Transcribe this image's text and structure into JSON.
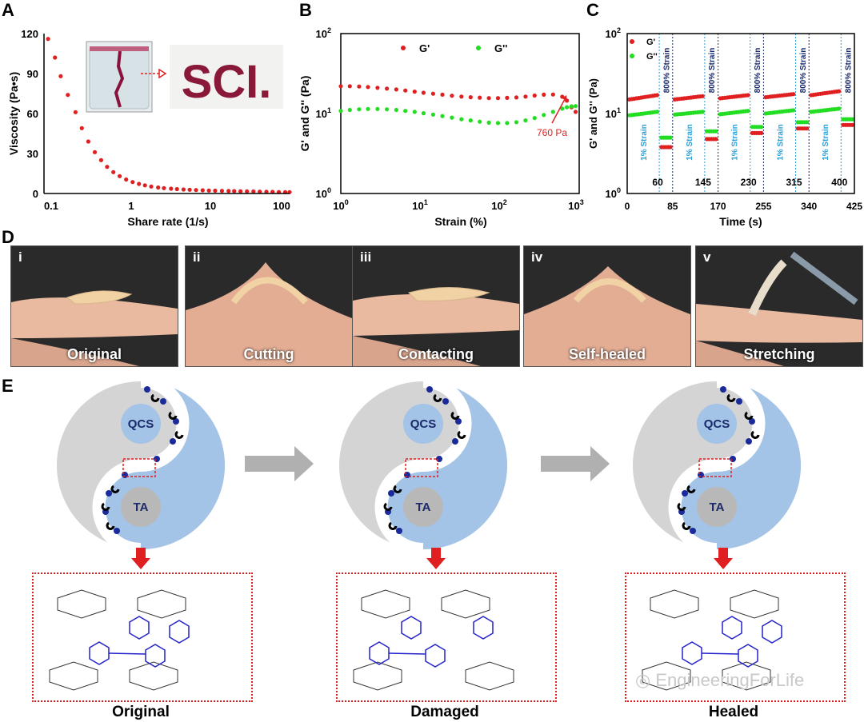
{
  "panels": {
    "a": "A",
    "b": "B",
    "c": "C",
    "d": "D",
    "e": "E"
  },
  "panel_a": {
    "ylabel": "Viscosity (Pa•s)",
    "xlabel": "Share rate (1/s)",
    "yticks": [
      "120",
      "90",
      "60",
      "30",
      "0"
    ],
    "xticks": [
      "0.1",
      "1",
      "10",
      "100"
    ],
    "inset_text": "SCI."
  },
  "panel_b": {
    "ylabel": "G' and G'' (Pa)",
    "xlabel": "Strain (%)",
    "legend_gp": "G'",
    "legend_gpp": "G''",
    "annotation": "760 Pa",
    "ytick_base": [
      "10",
      "10",
      "10"
    ],
    "ytick_exp": [
      "2",
      "1",
      "0"
    ],
    "xtick_base": [
      "10",
      "10",
      "10",
      "10"
    ],
    "xtick_exp": [
      "0",
      "1",
      "2",
      "3"
    ]
  },
  "panel_c": {
    "ylabel": "G' and G'' (Pa)",
    "xlabel": "Time (s)",
    "legend_gp": "G'",
    "legend_gpp": "G''",
    "low_strain": "1% Strain",
    "high_strain": "800% Strain",
    "time_marks": [
      "60",
      "145",
      "230",
      "315",
      "400"
    ],
    "xticks": [
      "0",
      "85",
      "170",
      "255",
      "340",
      "425"
    ],
    "ytick_base": [
      "10",
      "10",
      "10"
    ],
    "ytick_exp": [
      "2",
      "1",
      "0"
    ]
  },
  "panel_d": {
    "photos": [
      {
        "num": "i",
        "caption": "Original"
      },
      {
        "num": "ii",
        "caption": "Cutting"
      },
      {
        "num": "iii",
        "caption": "Contacting"
      },
      {
        "num": "iv",
        "caption": "Self-healed"
      },
      {
        "num": "v",
        "caption": "Stretching"
      }
    ]
  },
  "panel_e": {
    "qcs": "QCS",
    "ta": "TA",
    "states": [
      "Original",
      "Damaged",
      "Healed"
    ]
  },
  "watermark": "EngineeringForLife",
  "chart_data": [
    {
      "type": "scatter",
      "title": "A",
      "xlabel": "Share rate (1/s)",
      "ylabel": "Viscosity (Pa•s)",
      "xscale": "log",
      "xlim": [
        0.08,
        100
      ],
      "ylim": [
        0,
        120
      ],
      "series": [
        {
          "name": "Viscosity",
          "x": [
            0.09,
            0.11,
            0.13,
            0.16,
            0.2,
            0.24,
            0.29,
            0.35,
            0.42,
            0.5,
            0.6,
            0.72,
            0.87,
            1.05,
            1.26,
            1.5,
            1.8,
            2.2,
            2.6,
            3.2,
            3.8,
            4.6,
            5.5,
            6.6,
            8,
            9.6,
            11.5,
            14,
            17,
            20,
            24,
            29,
            35,
            42,
            51,
            61,
            73,
            88,
            100
          ],
          "y": [
            116,
            102,
            88,
            74,
            61,
            49,
            39,
            31,
            25,
            20,
            16,
            13,
            10.5,
            8.6,
            7.2,
            6.1,
            5.2,
            4.5,
            4,
            3.6,
            3.3,
            3,
            2.8,
            2.6,
            2.4,
            2.2,
            2.1,
            2,
            1.9,
            1.8,
            1.7,
            1.6,
            1.5,
            1.4,
            1.3,
            1.2,
            1.1,
            1,
            1
          ]
        }
      ]
    },
    {
      "type": "scatter",
      "title": "B",
      "xlabel": "Strain (%)",
      "ylabel": "G' and G'' (Pa)",
      "xscale": "log",
      "yscale": "log",
      "xlim": [
        1,
        1000
      ],
      "ylim": [
        1,
        100
      ],
      "series": [
        {
          "name": "G'",
          "color": "#e02020",
          "x": [
            1,
            1.3,
            1.7,
            2.2,
            2.9,
            3.8,
            5,
            6.5,
            8.5,
            11,
            14.5,
            19,
            25,
            33,
            43,
            56,
            73,
            95,
            124,
            162,
            211,
            275,
            359,
            469,
            612,
            700,
            800,
            900
          ],
          "y": [
            22,
            22,
            21.8,
            21.5,
            21,
            20.5,
            20,
            19.4,
            18.8,
            18.2,
            17.7,
            17.2,
            16.7,
            16.3,
            16,
            15.8,
            15.6,
            15.6,
            15.7,
            15.9,
            16.3,
            16.8,
            17.2,
            17.3,
            16.2,
            14.5,
            12,
            10.5
          ]
        },
        {
          "name": "G''",
          "color": "#22dd22",
          "x": [
            1,
            1.3,
            1.7,
            2.2,
            2.9,
            3.8,
            5,
            6.5,
            8.5,
            11,
            14.5,
            19,
            25,
            33,
            43,
            56,
            73,
            95,
            124,
            162,
            211,
            275,
            359,
            469,
            612,
            700,
            800,
            900
          ],
          "y": [
            10.8,
            11.1,
            11.3,
            11.4,
            11.4,
            11.3,
            11.1,
            10.8,
            10.5,
            10.1,
            9.7,
            9.3,
            8.9,
            8.5,
            8.2,
            7.9,
            7.7,
            7.6,
            7.6,
            7.8,
            8.2,
            8.8,
            9.6,
            10.5,
            11.5,
            12,
            12.3,
            12.4
          ]
        }
      ],
      "annotations": [
        "760 Pa"
      ]
    },
    {
      "type": "scatter",
      "title": "C",
      "xlabel": "Time (s)",
      "ylabel": "G' and G'' (Pa)",
      "yscale": "log",
      "xlim": [
        0,
        425
      ],
      "ylim": [
        1,
        100
      ],
      "xticks": [
        0,
        85,
        170,
        255,
        340,
        425
      ],
      "segments": [
        {
          "strain": "1% Strain",
          "start": 0,
          "end": 60,
          "Gp": [
            15,
            17
          ],
          "Gpp": [
            9.5,
            10.5
          ]
        },
        {
          "strain": "800% Strain",
          "start": 60,
          "end": 85,
          "Gp": [
            3.8,
            3.8
          ],
          "Gpp": [
            5,
            5
          ]
        },
        {
          "strain": "1% Strain",
          "start": 85,
          "end": 145,
          "Gp": [
            15,
            16.5
          ],
          "Gpp": [
            9.7,
            10.5
          ]
        },
        {
          "strain": "800% Strain",
          "start": 145,
          "end": 170,
          "Gp": [
            4.8,
            4.8
          ],
          "Gpp": [
            6,
            6
          ]
        },
        {
          "strain": "1% Strain",
          "start": 170,
          "end": 230,
          "Gp": [
            15.5,
            17
          ],
          "Gpp": [
            9.8,
            10.8
          ]
        },
        {
          "strain": "800% Strain",
          "start": 230,
          "end": 255,
          "Gp": [
            5.7,
            5.7
          ],
          "Gpp": [
            6.8,
            6.8
          ]
        },
        {
          "strain": "1% Strain",
          "start": 255,
          "end": 315,
          "Gp": [
            16,
            17.5
          ],
          "Gpp": [
            10,
            11
          ]
        },
        {
          "strain": "800% Strain",
          "start": 315,
          "end": 340,
          "Gp": [
            6.5,
            6.5
          ],
          "Gpp": [
            7.8,
            7.8
          ]
        },
        {
          "strain": "1% Strain",
          "start": 340,
          "end": 400,
          "Gp": [
            17,
            19
          ],
          "Gpp": [
            10.5,
            11.5
          ]
        },
        {
          "strain": "800% Strain",
          "start": 400,
          "end": 425,
          "Gp": [
            7.2,
            7.2
          ],
          "Gpp": [
            8.5,
            8.5
          ]
        }
      ]
    }
  ]
}
